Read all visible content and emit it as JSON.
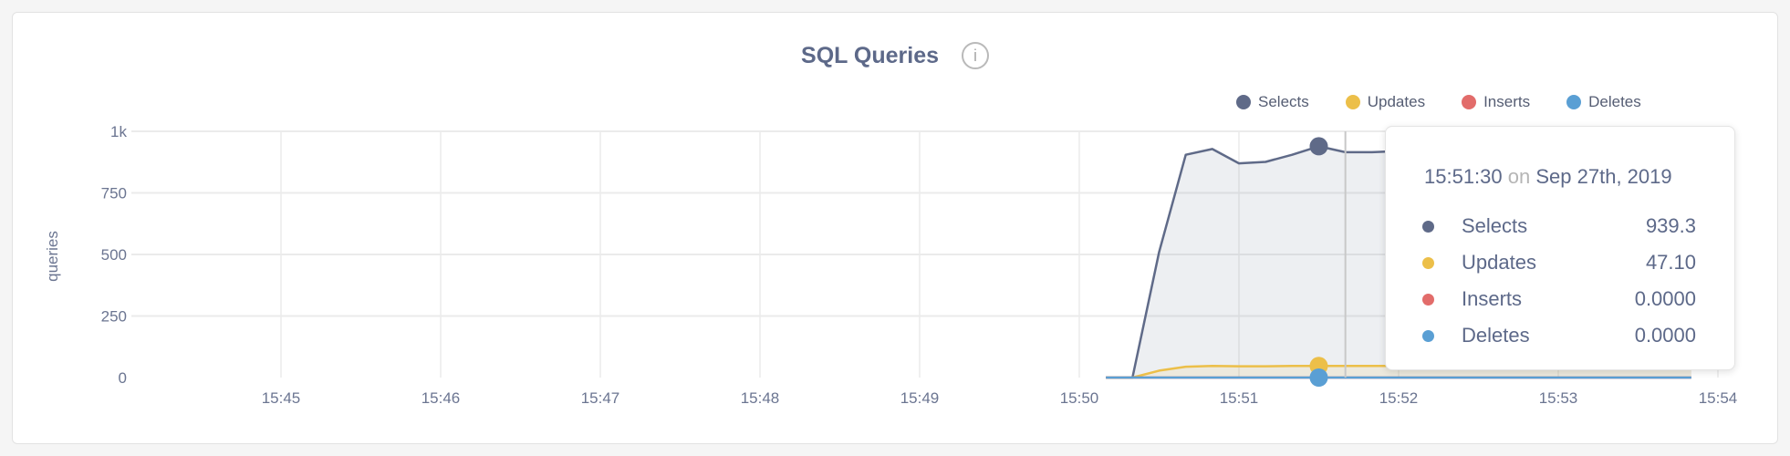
{
  "chart_data": {
    "type": "area",
    "title": "SQL Queries",
    "ylabel": "queries",
    "xlabel": "",
    "ylim": [
      0,
      1000
    ],
    "y_ticks": [
      "0",
      "250",
      "500",
      "750",
      "1k"
    ],
    "y_tick_values": [
      0,
      250,
      500,
      750,
      1000
    ],
    "x_ticks": [
      "15:45",
      "15:46",
      "15:47",
      "15:48",
      "15:49",
      "15:50",
      "15:51",
      "15:52",
      "15:53",
      "15:54"
    ],
    "xlim": [
      "15:43:50",
      "15:54:00"
    ],
    "grid": true,
    "legend_position": "top-right",
    "x": [
      "15:50:10",
      "15:50:20",
      "15:50:30",
      "15:50:40",
      "15:50:50",
      "15:51:00",
      "15:51:10",
      "15:51:20",
      "15:51:30",
      "15:51:40",
      "15:51:50",
      "15:52:00",
      "15:52:10",
      "15:52:20",
      "15:52:30",
      "15:52:40",
      "15:52:50",
      "15:53:00",
      "15:53:10",
      "15:53:20",
      "15:53:30",
      "15:53:40",
      "15:53:50"
    ],
    "series": [
      {
        "name": "Selects",
        "color": "#5f6a88",
        "values": [
          0,
          0,
          510,
          905,
          928,
          870,
          876,
          905,
          939.3,
          915,
          915,
          920,
          925,
          930,
          928,
          925,
          930,
          935,
          930,
          928,
          925,
          930,
          930
        ]
      },
      {
        "name": "Updates",
        "color": "#ecbf49",
        "values": [
          0,
          0,
          28,
          44,
          47,
          46,
          46,
          47,
          47.1,
          47,
          47,
          47,
          47,
          47,
          47,
          47,
          47,
          47,
          47,
          47,
          47,
          47,
          47
        ]
      },
      {
        "name": "Inserts",
        "color": "#e26c6a",
        "values": [
          0,
          0,
          0,
          0,
          0,
          0,
          0,
          0,
          0,
          0,
          0,
          0,
          0,
          0,
          0,
          0,
          0,
          0,
          0,
          0,
          0,
          0,
          0
        ]
      },
      {
        "name": "Deletes",
        "color": "#5a9fd4",
        "values": [
          0,
          0,
          0,
          0,
          0,
          0,
          0,
          0,
          0,
          0,
          0,
          0,
          0,
          0,
          0,
          0,
          0,
          0,
          0,
          0,
          0,
          0,
          0
        ]
      }
    ],
    "highlight_x": "15:51:30"
  },
  "info_icon": "info-circle-icon",
  "tooltip": {
    "time": "15:51:30",
    "on": "on",
    "date": "Sep 27th, 2019",
    "rows": [
      {
        "label": "Selects",
        "value": "939.3",
        "color": "#5f6a88"
      },
      {
        "label": "Updates",
        "value": "47.10",
        "color": "#ecbf49"
      },
      {
        "label": "Inserts",
        "value": "0.0000",
        "color": "#e26c6a"
      },
      {
        "label": "Deletes",
        "value": "0.0000",
        "color": "#5a9fd4"
      }
    ]
  }
}
